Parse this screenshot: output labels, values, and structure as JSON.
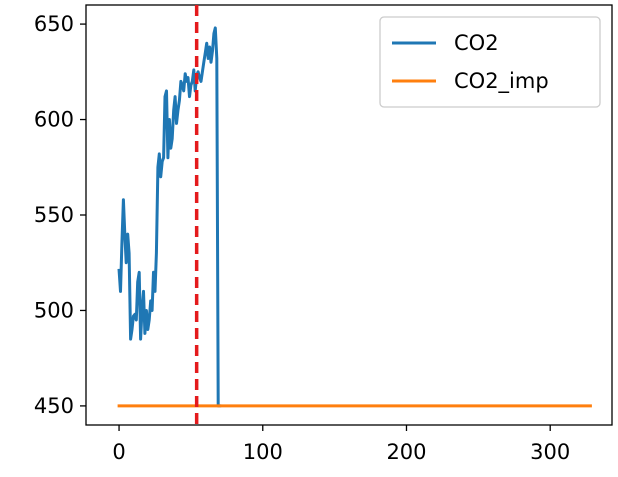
{
  "chart_data": {
    "type": "line",
    "title": "",
    "xlabel": "",
    "ylabel": "",
    "xlim": [
      -23,
      343
    ],
    "ylim": [
      440,
      660
    ],
    "xticks": [
      0,
      100,
      200,
      300
    ],
    "yticks": [
      450,
      500,
      550,
      600,
      650
    ],
    "grid": false,
    "legend_position": "top-right",
    "vline": {
      "x": 54,
      "color": "#e41a1c",
      "style": "dashed"
    },
    "series": [
      {
        "name": "CO2",
        "color": "#1f77b4",
        "x": [
          0,
          1,
          2,
          3,
          4,
          5,
          6,
          7,
          8,
          9,
          10,
          11,
          12,
          13,
          14,
          15,
          16,
          17,
          18,
          19,
          20,
          21,
          22,
          23,
          24,
          25,
          26,
          27,
          28,
          29,
          30,
          31,
          32,
          33,
          34,
          35,
          36,
          37,
          38,
          39,
          40,
          41,
          42,
          43,
          44,
          45,
          46,
          47,
          48,
          49,
          50,
          51,
          52,
          53,
          54,
          55,
          56,
          57,
          58,
          59,
          60,
          61,
          62,
          63,
          64,
          65,
          66,
          67,
          68,
          69,
          70
        ],
        "values": [
          521,
          510,
          535,
          558,
          540,
          525,
          540,
          530,
          485,
          490,
          497,
          498,
          495,
          515,
          520,
          485,
          500,
          510,
          488,
          500,
          490,
          495,
          505,
          500,
          520,
          510,
          530,
          575,
          582,
          570,
          578,
          580,
          612,
          615,
          580,
          600,
          585,
          590,
          605,
          612,
          598,
          605,
          610,
          620,
          618,
          615,
          624,
          620,
          622,
          612,
          618,
          620,
          626,
          615,
          623,
          625,
          622,
          620,
          625,
          630,
          635,
          640,
          632,
          638,
          630,
          636,
          645,
          648,
          632,
          450,
          450
        ]
      },
      {
        "name": "CO2_imp",
        "color": "#ff7f0e",
        "x": [
          0,
          328
        ],
        "values": [
          450,
          450
        ]
      }
    ]
  }
}
